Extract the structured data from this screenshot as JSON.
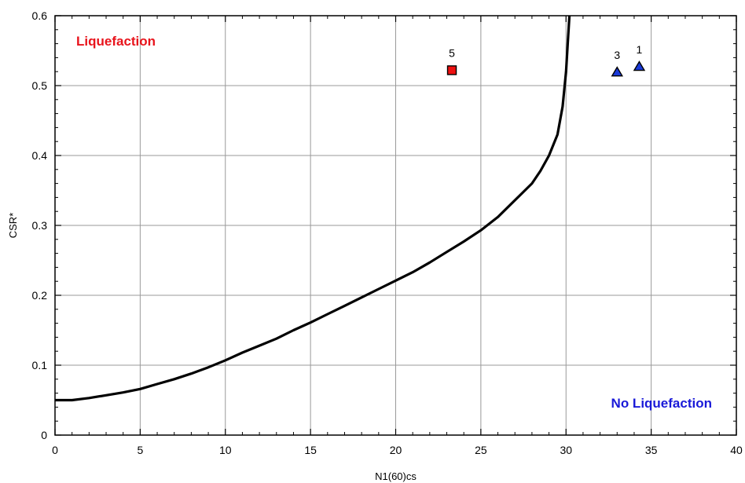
{
  "chart_data": {
    "type": "scatter",
    "title": "",
    "xlabel": "N1(60)cs",
    "ylabel": "CSR*",
    "xlim": [
      0,
      40
    ],
    "ylim": [
      0,
      0.6
    ],
    "xticks": [
      0,
      5,
      10,
      15,
      20,
      25,
      30,
      35,
      40
    ],
    "yticks": [
      0,
      0.1,
      0.2,
      0.3,
      0.4,
      0.5,
      0.6
    ],
    "grid": true,
    "regions": {
      "liquefaction": {
        "text": "Liquefaction",
        "color": "#e8141c"
      },
      "no_liquefaction": {
        "text": "No Liquefaction",
        "color": "#1a1ad8"
      }
    },
    "boundary_curve": {
      "color": "#000000",
      "x": [
        0,
        1,
        2,
        3,
        4,
        5,
        6,
        7,
        8,
        9,
        10,
        11,
        12,
        13,
        14,
        15,
        16,
        17,
        18,
        19,
        20,
        21,
        22,
        23,
        24,
        25,
        26,
        27,
        28,
        28.5,
        29,
        29.5,
        29.8,
        30,
        30.1,
        30.2
      ],
      "y": [
        0.05,
        0.05,
        0.053,
        0.057,
        0.061,
        0.066,
        0.073,
        0.08,
        0.088,
        0.097,
        0.107,
        0.118,
        0.128,
        0.138,
        0.15,
        0.161,
        0.173,
        0.185,
        0.197,
        0.209,
        0.221,
        0.233,
        0.247,
        0.262,
        0.277,
        0.293,
        0.312,
        0.336,
        0.36,
        0.378,
        0.4,
        0.43,
        0.47,
        0.52,
        0.56,
        0.6
      ]
    },
    "points": [
      {
        "label": "5",
        "x": 23.3,
        "y": 0.522,
        "marker": "square",
        "color": "#ee1111"
      },
      {
        "label": "3",
        "x": 33.0,
        "y": 0.519,
        "marker": "triangle",
        "color": "#1a3ad8"
      },
      {
        "label": "1",
        "x": 34.3,
        "y": 0.527,
        "marker": "triangle",
        "color": "#1a3ad8"
      }
    ]
  }
}
